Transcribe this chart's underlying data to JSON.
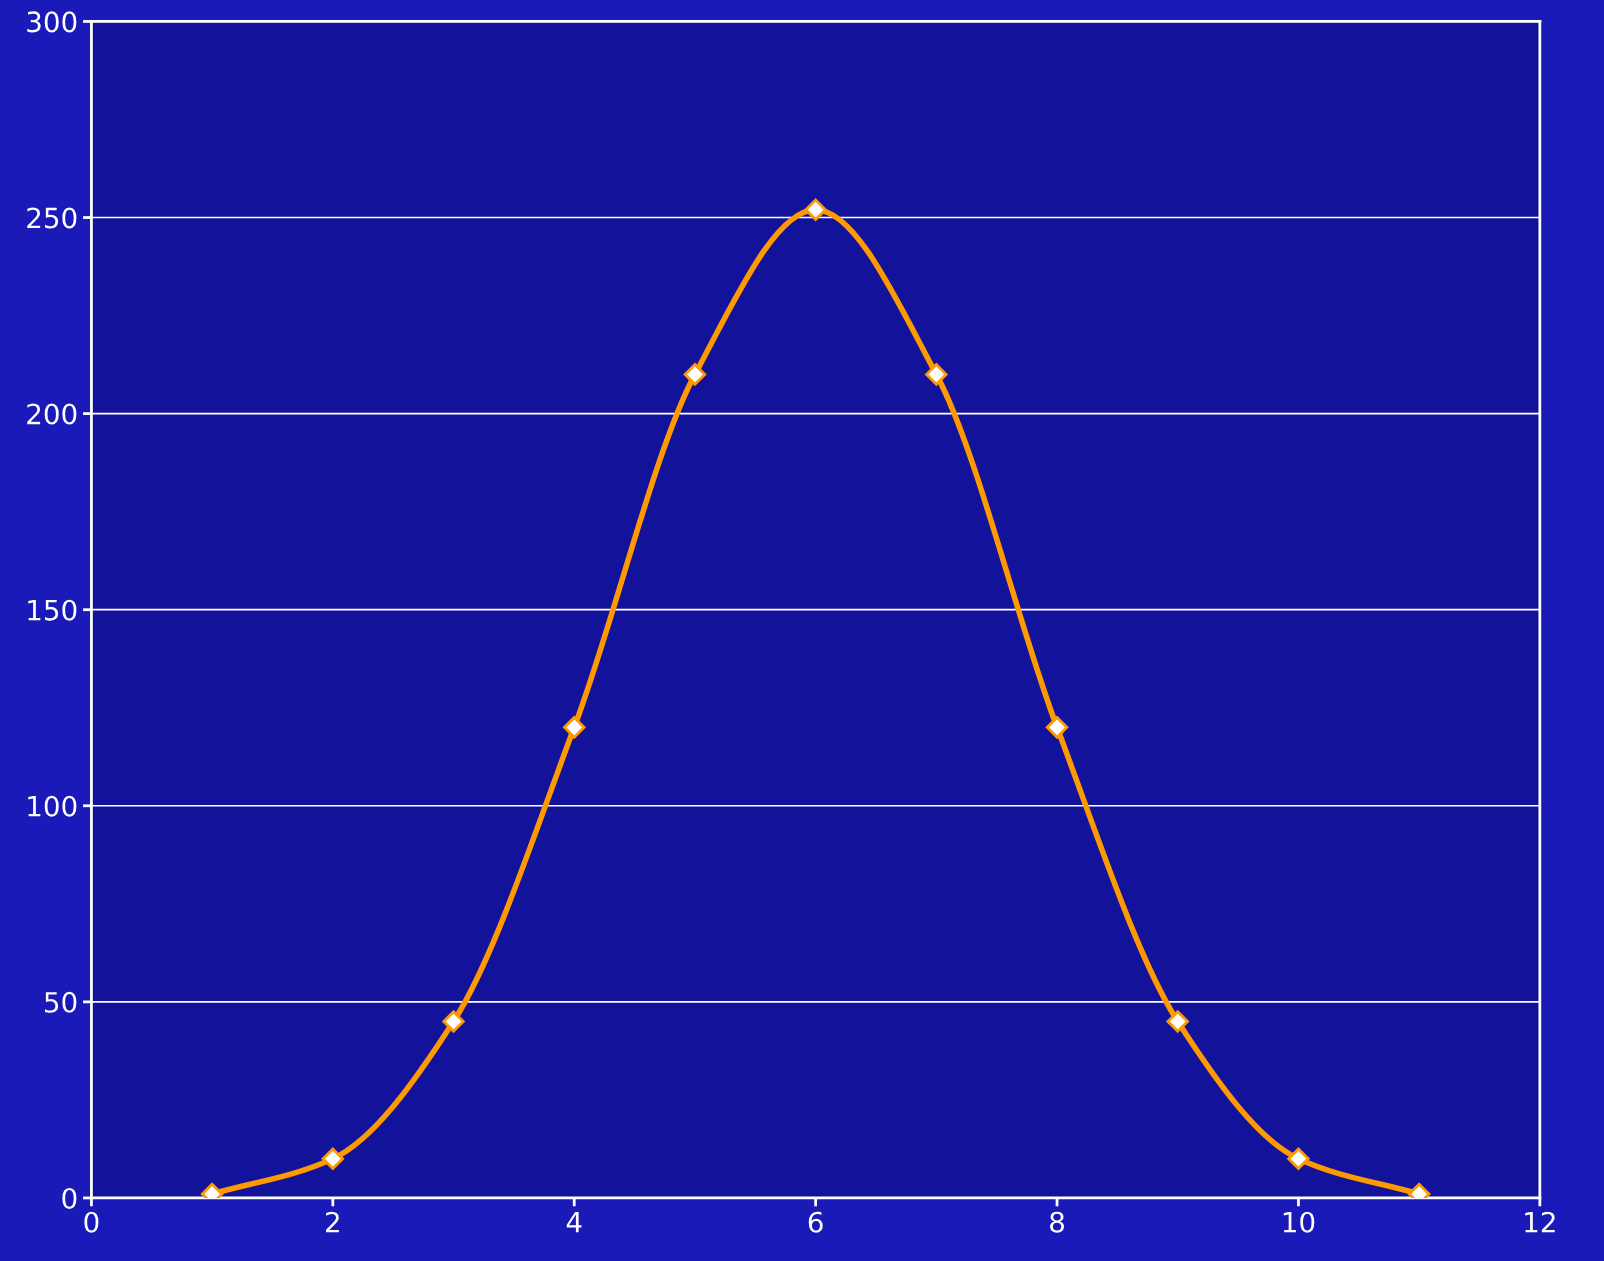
{
  "chart_data": {
    "type": "line",
    "x": [
      1,
      2,
      3,
      4,
      5,
      6,
      7,
      8,
      9,
      10,
      11
    ],
    "series": [
      {
        "color": "#ff9900",
        "values": [
          1,
          10,
          45,
          120,
          210,
          252,
          210,
          120,
          45,
          10,
          1
        ]
      }
    ],
    "xlim": [
      0,
      12
    ],
    "xticks": [
      0,
      2,
      4,
      6,
      8,
      10,
      12
    ],
    "ylim": [
      0,
      300
    ],
    "yticks": [
      0,
      50,
      100,
      150,
      200,
      250,
      300
    ],
    "grid": "y",
    "marker": "diamond",
    "line_style": "solid",
    "legend": false
  }
}
